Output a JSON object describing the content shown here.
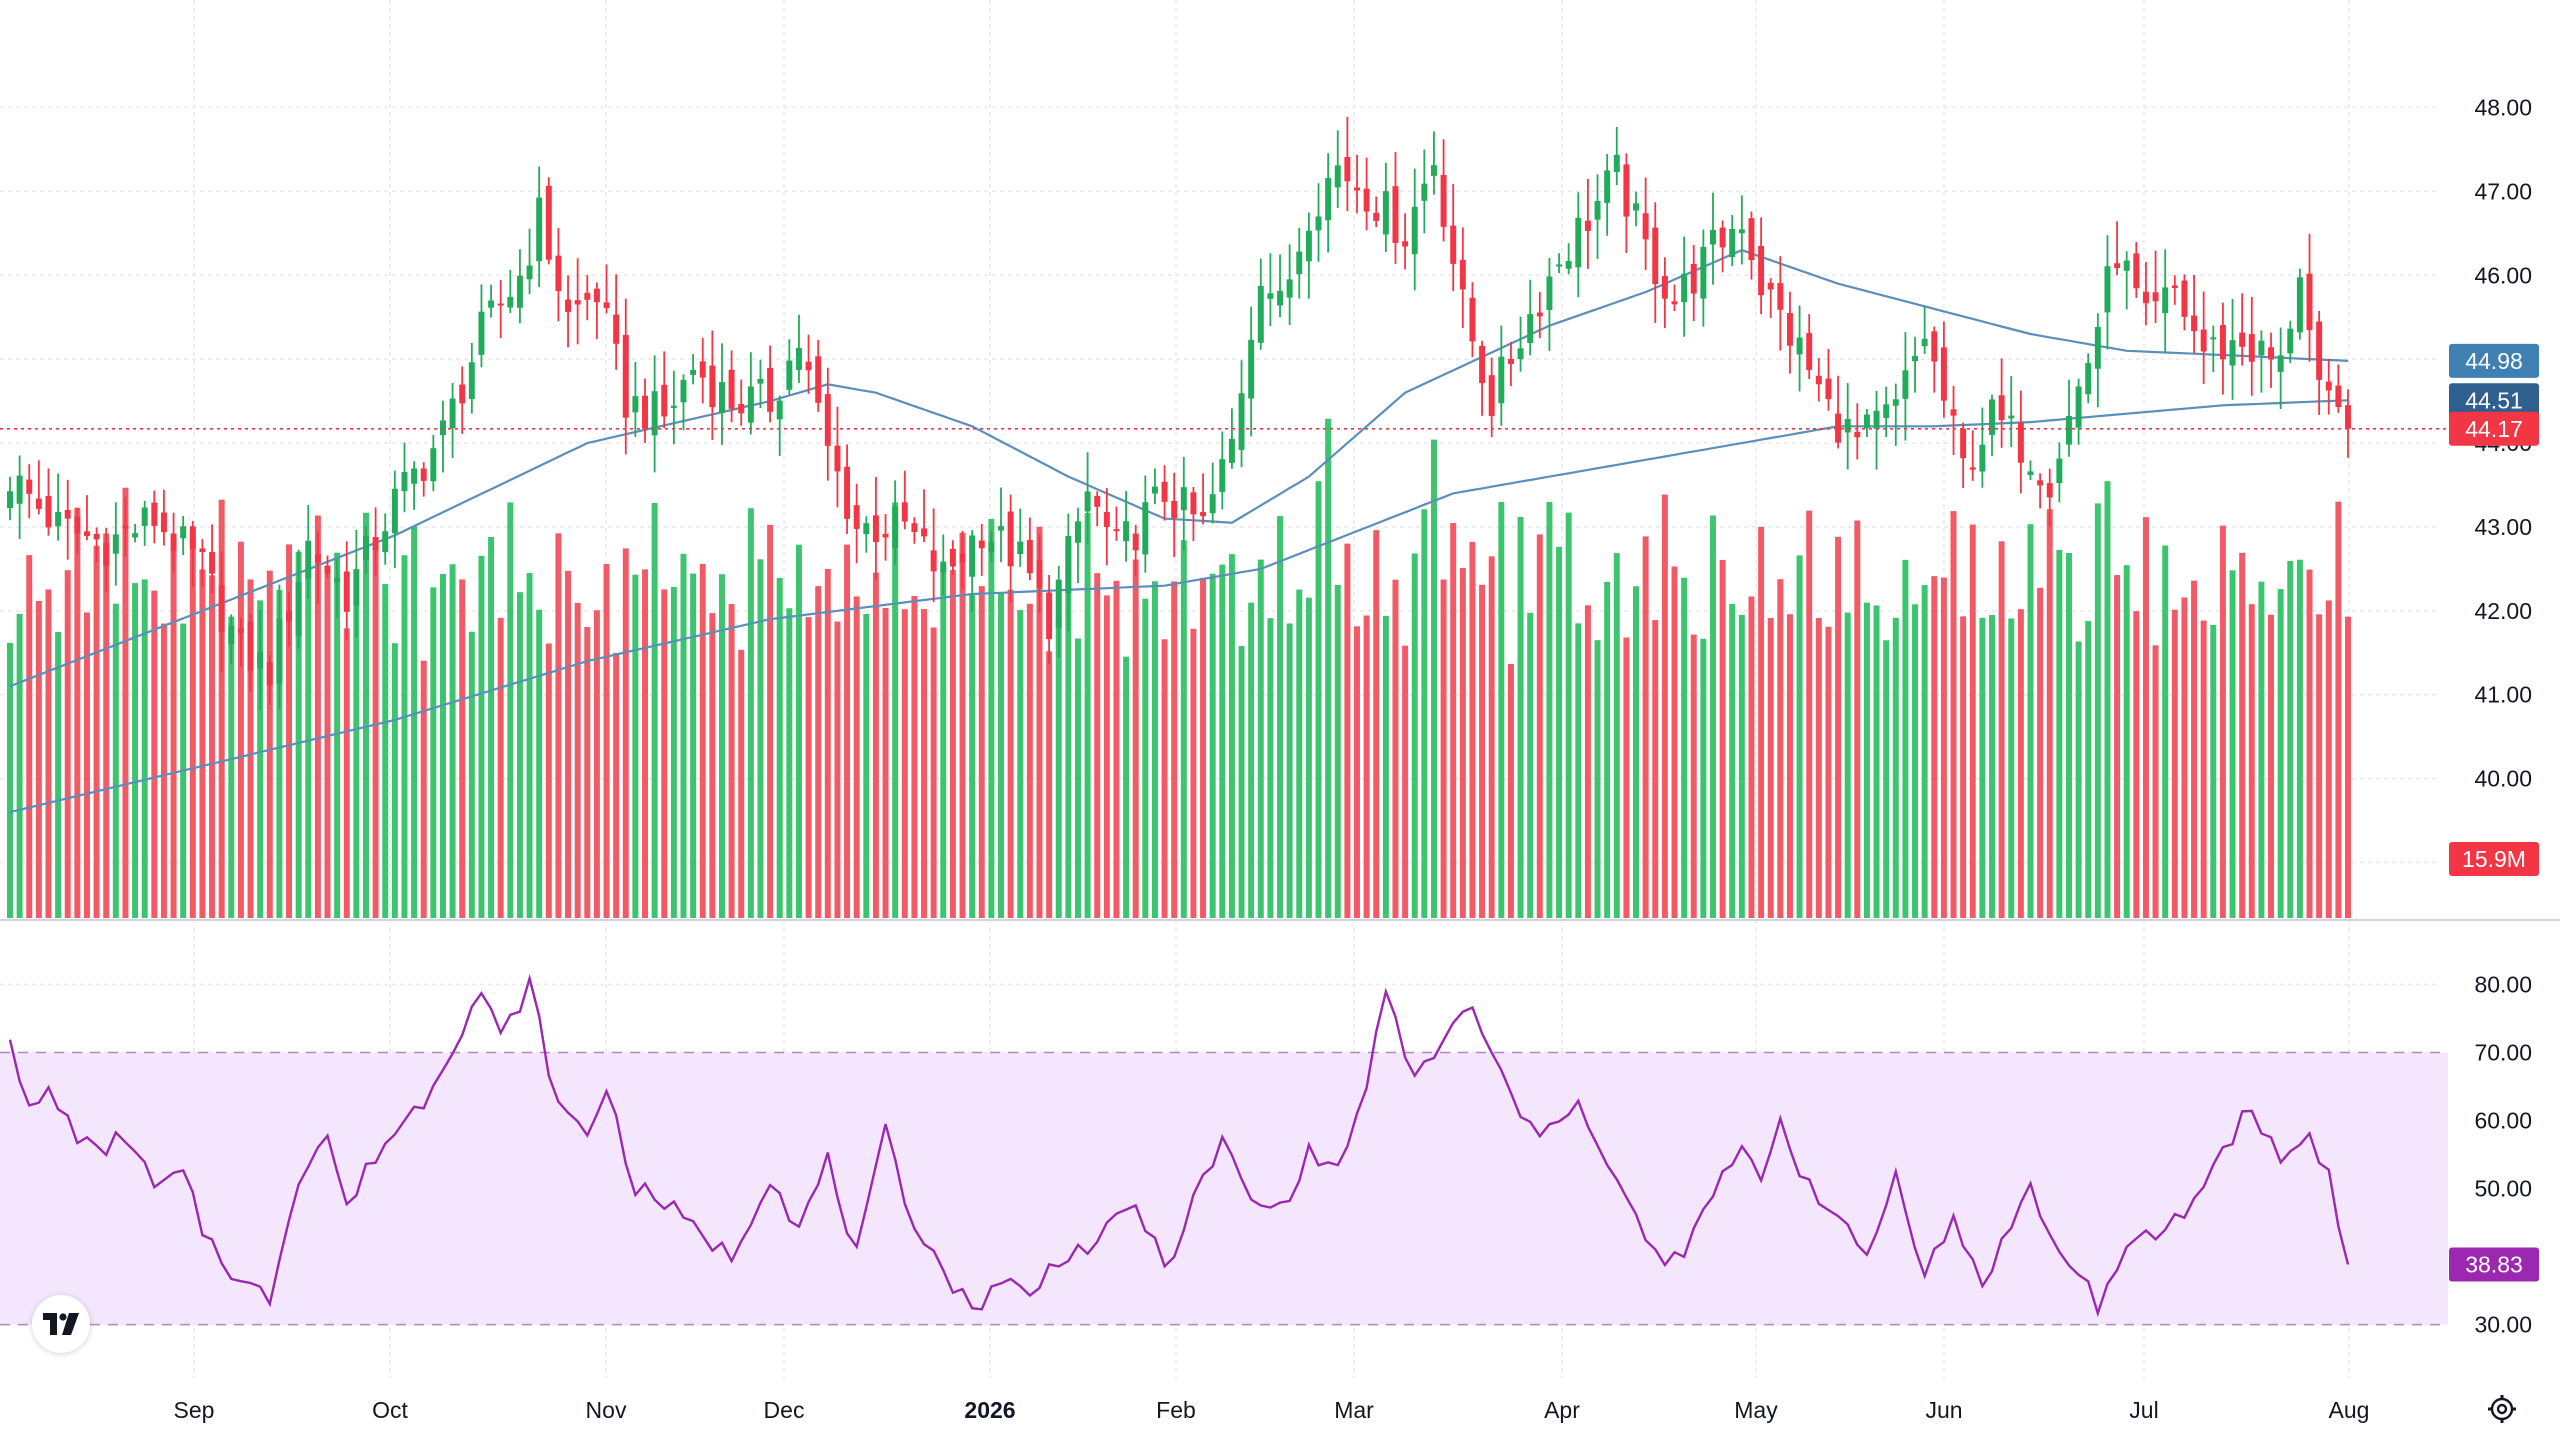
{
  "colors": {
    "up": "#22ab5a",
    "down": "#f23645",
    "ma": "#5b8fba",
    "rsi": "#9c27b0",
    "rsi_band": "#f3e6fd",
    "grid": "#e6e9ef"
  },
  "icons": {
    "logo": "tradingview-logo",
    "settings": "gear-icon"
  },
  "chart_data": [
    {
      "type": "candlestick",
      "name": "price",
      "ylim": [
        38.6,
        48.4
      ],
      "y_ticks": [
        "48.00",
        "47.00",
        "46.00",
        "45.00",
        "44.00",
        "43.00",
        "42.00",
        "41.00",
        "40.00",
        "39.00"
      ],
      "x_ticks": [
        "Sep",
        "Oct",
        "Nov",
        "Dec",
        "2026",
        "Feb",
        "Mar",
        "Apr",
        "May",
        "Jun",
        "Jul",
        "Aug"
      ],
      "anchors": [
        [
          0,
          43.6
        ],
        [
          5,
          43.0
        ],
        [
          10,
          42.8
        ],
        [
          15,
          43.1
        ],
        [
          20,
          42.5
        ],
        [
          24,
          41.5
        ],
        [
          27,
          41.3
        ],
        [
          31,
          42.8
        ],
        [
          35,
          42.2
        ],
        [
          40,
          43.3
        ],
        [
          45,
          44.1
        ],
        [
          49,
          45.3
        ],
        [
          53,
          46.0
        ],
        [
          55,
          46.7
        ],
        [
          58,
          45.5
        ],
        [
          61,
          45.8
        ],
        [
          64,
          44.5
        ],
        [
          68,
          44.3
        ],
        [
          71,
          44.9
        ],
        [
          75,
          44.5
        ],
        [
          79,
          44.5
        ],
        [
          82,
          45.2
        ],
        [
          85,
          43.9
        ],
        [
          88,
          43.0
        ],
        [
          93,
          43.0
        ],
        [
          97,
          42.4
        ],
        [
          101,
          43.0
        ],
        [
          105,
          42.6
        ],
        [
          108,
          41.9
        ],
        [
          112,
          43.4
        ],
        [
          115,
          42.7
        ],
        [
          120,
          43.4
        ],
        [
          124,
          43.0
        ],
        [
          127,
          44.0
        ],
        [
          130,
          46.1
        ],
        [
          132,
          45.6
        ],
        [
          135,
          46.8
        ],
        [
          138,
          47.3
        ],
        [
          141,
          47.0
        ],
        [
          145,
          46.5
        ],
        [
          148,
          47.4
        ],
        [
          151,
          45.6
        ],
        [
          154,
          44.5
        ],
        [
          157,
          45.3
        ],
        [
          161,
          46.2
        ],
        [
          164,
          46.7
        ],
        [
          167,
          47.2
        ],
        [
          170,
          46.3
        ],
        [
          173,
          45.7
        ],
        [
          177,
          46.3
        ],
        [
          180,
          46.7
        ],
        [
          182,
          45.9
        ],
        [
          186,
          45.1
        ],
        [
          189,
          44.4
        ],
        [
          192,
          44.0
        ],
        [
          196,
          44.4
        ],
        [
          199,
          45.3
        ],
        [
          203,
          43.7
        ],
        [
          206,
          44.3
        ],
        [
          209,
          44.0
        ],
        [
          212,
          43.6
        ],
        [
          216,
          45.0
        ],
        [
          219,
          46.3
        ],
        [
          222,
          45.4
        ],
        [
          225,
          45.8
        ],
        [
          228,
          45.1
        ],
        [
          232,
          45.2
        ],
        [
          236,
          44.9
        ],
        [
          238,
          46.1
        ],
        [
          240,
          44.5
        ],
        [
          242,
          44.3
        ],
        [
          243,
          44.17
        ]
      ],
      "last_price": "44.17",
      "moving_averages": [
        {
          "label": "44.98",
          "anchors": [
            [
              0,
              41.1
            ],
            [
              20,
              42.0
            ],
            [
              40,
              42.9
            ],
            [
              60,
              44.0
            ],
            [
              79,
              44.5
            ],
            [
              85,
              44.7
            ],
            [
              90,
              44.6
            ],
            [
              100,
              44.2
            ],
            [
              110,
              43.6
            ],
            [
              120,
              43.1
            ],
            [
              127,
              43.05
            ],
            [
              135,
              43.6
            ],
            [
              145,
              44.6
            ],
            [
              160,
              45.4
            ],
            [
              170,
              45.8
            ],
            [
              180,
              46.3
            ],
            [
              190,
              45.9
            ],
            [
              200,
              45.6
            ],
            [
              210,
              45.3
            ],
            [
              220,
              45.1
            ],
            [
              230,
              45.05
            ],
            [
              243,
              44.98
            ]
          ]
        },
        {
          "label": "44.51",
          "anchors": [
            [
              0,
              39.6
            ],
            [
              40,
              40.7
            ],
            [
              60,
              41.4
            ],
            [
              79,
              41.9
            ],
            [
              100,
              42.2
            ],
            [
              120,
              42.3
            ],
            [
              130,
              42.5
            ],
            [
              150,
              43.4
            ],
            [
              170,
              43.8
            ],
            [
              185,
              44.1
            ],
            [
              190,
              44.2
            ],
            [
              200,
              44.2
            ],
            [
              210,
              44.25
            ],
            [
              220,
              44.35
            ],
            [
              230,
              44.45
            ],
            [
              243,
              44.51
            ]
          ]
        }
      ]
    },
    {
      "type": "bar",
      "name": "volume",
      "ylim": [
        0,
        25
      ],
      "last_volume": "15.9M",
      "pattern": [
        13,
        14,
        17,
        12,
        15,
        13,
        14,
        16,
        12,
        14,
        15,
        13,
        17,
        14,
        15,
        13,
        12,
        16,
        14,
        15
      ]
    },
    {
      "type": "line",
      "name": "RSI",
      "ylim": [
        27,
        83
      ],
      "y_ticks": [
        "80.00",
        "70.00",
        "60.00",
        "50.00",
        "40.00",
        "30.00"
      ],
      "band": [
        30,
        70
      ],
      "last_value": "38.83",
      "anchors": [
        [
          0,
          73
        ],
        [
          2,
          61
        ],
        [
          4,
          64
        ],
        [
          7,
          58
        ],
        [
          9,
          55
        ],
        [
          12,
          58
        ],
        [
          15,
          50
        ],
        [
          18,
          52
        ],
        [
          20,
          44
        ],
        [
          24,
          36
        ],
        [
          27,
          34
        ],
        [
          30,
          52
        ],
        [
          33,
          58
        ],
        [
          35,
          47
        ],
        [
          38,
          55
        ],
        [
          41,
          60
        ],
        [
          43,
          63
        ],
        [
          47,
          74
        ],
        [
          49,
          79
        ],
        [
          51,
          72
        ],
        [
          54,
          80
        ],
        [
          57,
          62
        ],
        [
          60,
          58
        ],
        [
          62,
          65
        ],
        [
          65,
          50
        ],
        [
          68,
          48
        ],
        [
          71,
          44
        ],
        [
          75,
          40
        ],
        [
          79,
          52
        ],
        [
          82,
          44
        ],
        [
          85,
          54
        ],
        [
          88,
          40
        ],
        [
          91,
          58
        ],
        [
          93,
          48
        ],
        [
          97,
          38
        ],
        [
          100,
          32
        ],
        [
          103,
          37
        ],
        [
          106,
          34
        ],
        [
          109,
          40
        ],
        [
          113,
          42
        ],
        [
          117,
          48
        ],
        [
          120,
          38
        ],
        [
          123,
          48
        ],
        [
          126,
          57
        ],
        [
          129,
          48
        ],
        [
          132,
          47
        ],
        [
          135,
          55
        ],
        [
          138,
          53
        ],
        [
          140,
          60
        ],
        [
          143,
          78
        ],
        [
          146,
          66
        ],
        [
          150,
          74
        ],
        [
          152,
          76
        ],
        [
          154,
          70
        ],
        [
          157,
          60
        ],
        [
          160,
          58
        ],
        [
          163,
          64
        ],
        [
          165,
          56
        ],
        [
          168,
          48
        ],
        [
          172,
          38
        ],
        [
          175,
          43
        ],
        [
          178,
          52
        ],
        [
          180,
          55
        ],
        [
          182,
          52
        ],
        [
          184,
          60
        ],
        [
          186,
          53
        ],
        [
          190,
          45
        ],
        [
          193,
          40
        ],
        [
          196,
          52
        ],
        [
          199,
          38
        ],
        [
          202,
          45
        ],
        [
          205,
          36
        ],
        [
          207,
          42
        ],
        [
          210,
          50
        ],
        [
          213,
          40
        ],
        [
          215,
          38
        ],
        [
          217,
          33
        ],
        [
          219,
          38
        ],
        [
          221,
          42
        ],
        [
          224,
          44
        ],
        [
          227,
          48
        ],
        [
          230,
          56
        ],
        [
          233,
          62
        ],
        [
          236,
          54
        ],
        [
          239,
          58
        ],
        [
          241,
          52
        ],
        [
          243,
          38.83
        ]
      ]
    }
  ]
}
